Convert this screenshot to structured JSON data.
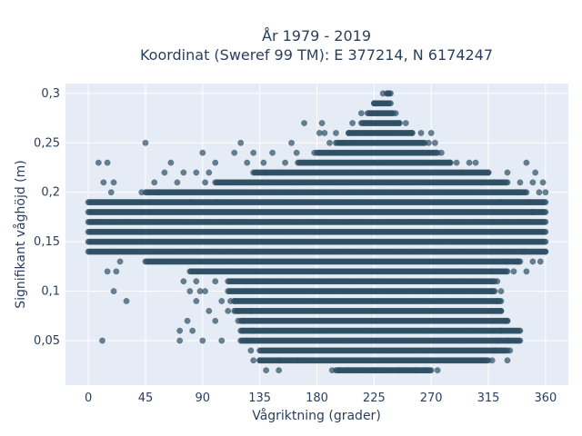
{
  "chart_data": {
    "type": "scatter",
    "title": [
      "År 1979 - 2019",
      "Koordinat (Sweref 99 TM): E 377214, N 6174247"
    ],
    "xlabel": "Vågriktning (grader)",
    "ylabel": "Signifikant våghöjd (m)",
    "xlim": [
      -18,
      378
    ],
    "ylim": [
      0.005,
      0.31
    ],
    "xticks": [
      0,
      45,
      90,
      135,
      180,
      225,
      270,
      315,
      360
    ],
    "xtick_labels": [
      "0",
      "45",
      "90",
      "135",
      "180",
      "225",
      "270",
      "315",
      "360"
    ],
    "yticks": [
      0.05,
      0.1,
      0.15,
      0.2,
      0.25,
      0.3
    ],
    "ytick_labels": [
      "0,05",
      "0,1",
      "0,15",
      "0,2",
      "0,25",
      "0,3"
    ],
    "grid": true,
    "marker_color": "#2f5064",
    "marker_opacity": 0.7,
    "background_color": "#e5ecf6",
    "rows": [
      {
        "y": 0.02,
        "from": 195,
        "to": 270
      },
      {
        "y": 0.03,
        "from": 135,
        "to": 315
      },
      {
        "y": 0.04,
        "from": 135,
        "to": 330
      },
      {
        "y": 0.05,
        "from": 120,
        "to": 340
      },
      {
        "y": 0.06,
        "from": 120,
        "to": 340
      },
      {
        "y": 0.07,
        "from": 120,
        "to": 330
      },
      {
        "y": 0.08,
        "from": 115,
        "to": 325
      },
      {
        "y": 0.09,
        "from": 115,
        "to": 325
      },
      {
        "y": 0.1,
        "from": 110,
        "to": 320
      },
      {
        "y": 0.11,
        "from": 110,
        "to": 320
      },
      {
        "y": 0.12,
        "from": 80,
        "to": 330
      },
      {
        "y": 0.13,
        "from": 45,
        "to": 340
      },
      {
        "y": 0.14,
        "from": 0,
        "to": 360
      },
      {
        "y": 0.15,
        "from": 0,
        "to": 360
      },
      {
        "y": 0.16,
        "from": 0,
        "to": 360
      },
      {
        "y": 0.17,
        "from": 0,
        "to": 360
      },
      {
        "y": 0.18,
        "from": 0,
        "to": 360
      },
      {
        "y": 0.19,
        "from": 0,
        "to": 360
      },
      {
        "y": 0.2,
        "from": 45,
        "to": 345
      },
      {
        "y": 0.21,
        "from": 100,
        "to": 330
      },
      {
        "y": 0.22,
        "from": 130,
        "to": 315
      },
      {
        "y": 0.23,
        "from": 165,
        "to": 285
      },
      {
        "y": 0.24,
        "from": 180,
        "to": 275
      },
      {
        "y": 0.25,
        "from": 195,
        "to": 265
      },
      {
        "y": 0.26,
        "from": 205,
        "to": 255
      },
      {
        "y": 0.27,
        "from": 215,
        "to": 245
      },
      {
        "y": 0.28,
        "from": 220,
        "to": 240
      },
      {
        "y": 0.29,
        "from": 225,
        "to": 238
      },
      {
        "y": 0.3,
        "from": 235,
        "to": 238
      }
    ],
    "points": [
      [
        11,
        0.05
      ],
      [
        20,
        0.1
      ],
      [
        30,
        0.09
      ],
      [
        15,
        0.12
      ],
      [
        22,
        0.12
      ],
      [
        25,
        0.13
      ],
      [
        18,
        0.2
      ],
      [
        8,
        0.23
      ],
      [
        15,
        0.23
      ],
      [
        12,
        0.21
      ],
      [
        20,
        0.21
      ],
      [
        42,
        0.2
      ],
      [
        45,
        0.25
      ],
      [
        52,
        0.21
      ],
      [
        55,
        0.2
      ],
      [
        60,
        0.22
      ],
      [
        65,
        0.23
      ],
      [
        70,
        0.21
      ],
      [
        75,
        0.22
      ],
      [
        80,
        0.19
      ],
      [
        85,
        0.22
      ],
      [
        90,
        0.24
      ],
      [
        92,
        0.21
      ],
      [
        95,
        0.22
      ],
      [
        100,
        0.23
      ],
      [
        102,
        0.19
      ],
      [
        85,
        0.09
      ],
      [
        95,
        0.08
      ],
      [
        100,
        0.07
      ],
      [
        90,
        0.05
      ],
      [
        105,
        0.05
      ],
      [
        82,
        0.06
      ],
      [
        72,
        0.06
      ],
      [
        72,
        0.05
      ],
      [
        78,
        0.07
      ],
      [
        105,
        0.09
      ],
      [
        110,
        0.08
      ],
      [
        112,
        0.09
      ],
      [
        118,
        0.07
      ],
      [
        122,
        0.07
      ],
      [
        125,
        0.1
      ],
      [
        75,
        0.11
      ],
      [
        80,
        0.1
      ],
      [
        85,
        0.11
      ],
      [
        88,
        0.1
      ],
      [
        92,
        0.1
      ],
      [
        100,
        0.11
      ],
      [
        115,
        0.24
      ],
      [
        120,
        0.25
      ],
      [
        125,
        0.23
      ],
      [
        130,
        0.24
      ],
      [
        138,
        0.23
      ],
      [
        140,
        0.22
      ],
      [
        145,
        0.24
      ],
      [
        150,
        0.22
      ],
      [
        155,
        0.23
      ],
      [
        160,
        0.25
      ],
      [
        164,
        0.24
      ],
      [
        170,
        0.27
      ],
      [
        178,
        0.24
      ],
      [
        182,
        0.26
      ],
      [
        184,
        0.27
      ],
      [
        186,
        0.26
      ],
      [
        190,
        0.25
      ],
      [
        195,
        0.26
      ],
      [
        200,
        0.25
      ],
      [
        205,
        0.26
      ],
      [
        208,
        0.27
      ],
      [
        215,
        0.28
      ],
      [
        225,
        0.29
      ],
      [
        232,
        0.3
      ],
      [
        236,
        0.3
      ],
      [
        242,
        0.28
      ],
      [
        245,
        0.27
      ],
      [
        250,
        0.27
      ],
      [
        255,
        0.26
      ],
      [
        262,
        0.26
      ],
      [
        268,
        0.25
      ],
      [
        270,
        0.26
      ],
      [
        273,
        0.25
      ],
      [
        278,
        0.24
      ],
      [
        285,
        0.23
      ],
      [
        290,
        0.23
      ],
      [
        295,
        0.22
      ],
      [
        300,
        0.23
      ],
      [
        305,
        0.23
      ],
      [
        310,
        0.21
      ],
      [
        315,
        0.22
      ],
      [
        320,
        0.21
      ],
      [
        325,
        0.19
      ],
      [
        330,
        0.22
      ],
      [
        338,
        0.2
      ],
      [
        345,
        0.23
      ],
      [
        350,
        0.21
      ],
      [
        352,
        0.22
      ],
      [
        355,
        0.2
      ],
      [
        358,
        0.21
      ],
      [
        360,
        0.2
      ],
      [
        347,
        0.19
      ],
      [
        350,
        0.18
      ],
      [
        340,
        0.21
      ],
      [
        343,
        0.14
      ],
      [
        350,
        0.13
      ],
      [
        356,
        0.13
      ],
      [
        360,
        0.14
      ],
      [
        345,
        0.12
      ],
      [
        140,
        0.02
      ],
      [
        150,
        0.02
      ],
      [
        192,
        0.02
      ],
      [
        198,
        0.02
      ],
      [
        205,
        0.02
      ],
      [
        215,
        0.02
      ],
      [
        225,
        0.02
      ],
      [
        232,
        0.02
      ],
      [
        245,
        0.02
      ],
      [
        258,
        0.02
      ],
      [
        265,
        0.02
      ],
      [
        275,
        0.02
      ],
      [
        130,
        0.03
      ],
      [
        135,
        0.03
      ],
      [
        150,
        0.03
      ],
      [
        165,
        0.03
      ],
      [
        310,
        0.03
      ],
      [
        318,
        0.03
      ],
      [
        320,
        0.04
      ],
      [
        322,
        0.05
      ],
      [
        325,
        0.06
      ],
      [
        330,
        0.05
      ],
      [
        332,
        0.04
      ],
      [
        330,
        0.03
      ],
      [
        325,
        0.08
      ],
      [
        328,
        0.07
      ],
      [
        330,
        0.07
      ],
      [
        322,
        0.09
      ],
      [
        318,
        0.1
      ],
      [
        322,
        0.11
      ],
      [
        325,
        0.1
      ],
      [
        330,
        0.13
      ],
      [
        335,
        0.12
      ],
      [
        338,
        0.13
      ],
      [
        128,
        0.04
      ],
      [
        125,
        0.05
      ],
      [
        122,
        0.06
      ],
      [
        118,
        0.08
      ],
      [
        115,
        0.09
      ],
      [
        130,
        0.06
      ],
      [
        128,
        0.08
      ]
    ]
  }
}
